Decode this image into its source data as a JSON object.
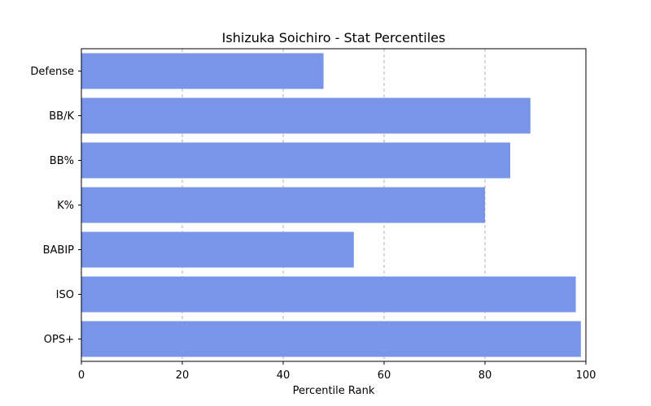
{
  "chart_data": {
    "type": "bar",
    "orientation": "horizontal",
    "title": "Ishizuka Soichiro - Stat Percentiles",
    "xlabel": "Percentile Rank",
    "ylabel": "",
    "categories": [
      "OPS+",
      "ISO",
      "BABIP",
      "K%",
      "BB%",
      "BB/K",
      "Defense"
    ],
    "values": [
      99,
      98,
      54,
      80,
      85,
      89,
      48
    ],
    "xlim": [
      0,
      100
    ],
    "xticks": [
      0,
      20,
      40,
      60,
      80,
      100
    ],
    "grid": "vertical dashed",
    "bar_color": "#7895e9"
  }
}
